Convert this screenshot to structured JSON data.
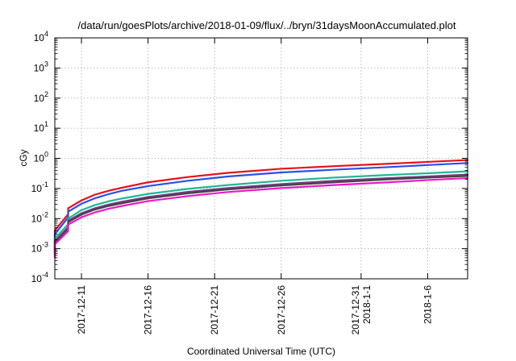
{
  "chart_data": {
    "type": "line",
    "title": "/data/run/goesPlots/archive/2018-01-09/flux/../bryn/31daysMoonAccumulated.plot",
    "xlabel": "Coordinated Universal Time (UTC)",
    "ylabel": "cGy",
    "y_scale": "log",
    "ylim": [
      0.0001,
      10000
    ],
    "xlim": [
      "2017-12-09",
      "2018-01-09"
    ],
    "y_ticks": [
      {
        "value": 0.0001,
        "base": "10",
        "exp": "-4"
      },
      {
        "value": 0.001,
        "base": "10",
        "exp": "-3"
      },
      {
        "value": 0.01,
        "base": "10",
        "exp": "-2"
      },
      {
        "value": 0.1,
        "base": "10",
        "exp": "-1"
      },
      {
        "value": 1,
        "base": "10",
        "exp": "0"
      },
      {
        "value": 10,
        "base": "10",
        "exp": "1"
      },
      {
        "value": 100,
        "base": "10",
        "exp": "2"
      },
      {
        "value": 1000,
        "base": "10",
        "exp": "3"
      },
      {
        "value": 10000,
        "base": "10",
        "exp": "4"
      }
    ],
    "x_ticks": [
      {
        "date": "2017-12-11",
        "lines": [
          "2017-12-11"
        ]
      },
      {
        "date": "2017-12-16",
        "lines": [
          "2017-12-16"
        ]
      },
      {
        "date": "2017-12-21",
        "lines": [
          "2017-12-21"
        ]
      },
      {
        "date": "2017-12-26",
        "lines": [
          "2017-12-26"
        ]
      },
      {
        "date": "2018-01-01",
        "lines": [
          "2017-12-31",
          "2018-1-1"
        ]
      },
      {
        "date": "2018-01-06",
        "lines": [
          "2018-1-6"
        ]
      }
    ],
    "grid": true,
    "series": [
      {
        "color": "#e8101a",
        "x": [
          "2017-12-09",
          "2017-12-09",
          "2017-12-10",
          "2017-12-10",
          "2017-12-11",
          "2017-12-12",
          "2017-12-13",
          "2017-12-14",
          "2017-12-16",
          "2017-12-19",
          "2017-12-22",
          "2017-12-26",
          "2017-12-30",
          "2018-01-03",
          "2018-01-06",
          "2018-01-09"
        ],
        "y": [
          0.0009,
          0.004,
          0.014,
          0.022,
          0.04,
          0.062,
          0.083,
          0.105,
          0.16,
          0.24,
          0.33,
          0.45,
          0.55,
          0.66,
          0.76,
          0.88
        ]
      },
      {
        "color": "#2a50e8",
        "x": [
          "2017-12-09",
          "2017-12-09",
          "2017-12-10",
          "2017-12-10",
          "2017-12-11",
          "2017-12-12",
          "2017-12-13",
          "2017-12-14",
          "2017-12-16",
          "2017-12-19",
          "2017-12-22",
          "2017-12-26",
          "2017-12-30",
          "2018-01-03",
          "2018-01-06",
          "2018-01-09"
        ],
        "y": [
          0.0008,
          0.003,
          0.011,
          0.017,
          0.031,
          0.047,
          0.064,
          0.083,
          0.12,
          0.18,
          0.25,
          0.34,
          0.42,
          0.51,
          0.6,
          0.7
        ]
      },
      {
        "color": "#1fb894",
        "x": [
          "2017-12-09",
          "2017-12-09",
          "2017-12-10",
          "2017-12-10",
          "2017-12-11",
          "2017-12-12",
          "2017-12-13",
          "2017-12-14",
          "2017-12-16",
          "2017-12-19",
          "2017-12-22",
          "2017-12-26",
          "2017-12-30",
          "2018-01-03",
          "2018-01-06",
          "2018-01-09"
        ],
        "y": [
          0.0007,
          0.0022,
          0.0065,
          0.01,
          0.019,
          0.028,
          0.037,
          0.046,
          0.066,
          0.097,
          0.13,
          0.18,
          0.23,
          0.28,
          0.32,
          0.37
        ]
      },
      {
        "color": "#7b3a8a",
        "x": [
          "2017-12-09",
          "2017-12-09",
          "2017-12-10",
          "2017-12-10",
          "2017-12-11",
          "2017-12-12",
          "2017-12-13",
          "2017-12-14",
          "2017-12-16",
          "2017-12-19",
          "2017-12-22",
          "2017-12-26",
          "2017-12-30",
          "2018-01-03",
          "2018-01-06",
          "2018-01-09"
        ],
        "y": [
          0.0006,
          0.0018,
          0.0052,
          0.0085,
          0.015,
          0.022,
          0.029,
          0.036,
          0.052,
          0.077,
          0.103,
          0.14,
          0.18,
          0.22,
          0.25,
          0.29
        ]
      },
      {
        "color": "#444444",
        "x": [
          "2017-12-09",
          "2017-12-09",
          "2017-12-10",
          "2017-12-10",
          "2017-12-11",
          "2017-12-12",
          "2017-12-13",
          "2017-12-14",
          "2017-12-16",
          "2017-12-19",
          "2017-12-22",
          "2017-12-26",
          "2017-12-30",
          "2018-01-03",
          "2018-01-06",
          "2018-01-09"
        ],
        "y": [
          0.00055,
          0.0016,
          0.0046,
          0.0076,
          0.0135,
          0.02,
          0.026,
          0.032,
          0.047,
          0.069,
          0.093,
          0.126,
          0.16,
          0.2,
          0.23,
          0.26
        ]
      },
      {
        "color": "#ee18c8",
        "x": [
          "2017-12-09",
          "2017-12-09",
          "2017-12-10",
          "2017-12-10",
          "2017-12-11",
          "2017-12-12",
          "2017-12-13",
          "2017-12-14",
          "2017-12-16",
          "2017-12-19",
          "2017-12-22",
          "2017-12-26",
          "2017-12-30",
          "2018-01-03",
          "2018-01-06",
          "2018-01-09"
        ],
        "y": [
          0.0005,
          0.0014,
          0.0038,
          0.0063,
          0.011,
          0.016,
          0.021,
          0.026,
          0.038,
          0.056,
          0.076,
          0.103,
          0.13,
          0.16,
          0.19,
          0.22
        ]
      }
    ]
  }
}
